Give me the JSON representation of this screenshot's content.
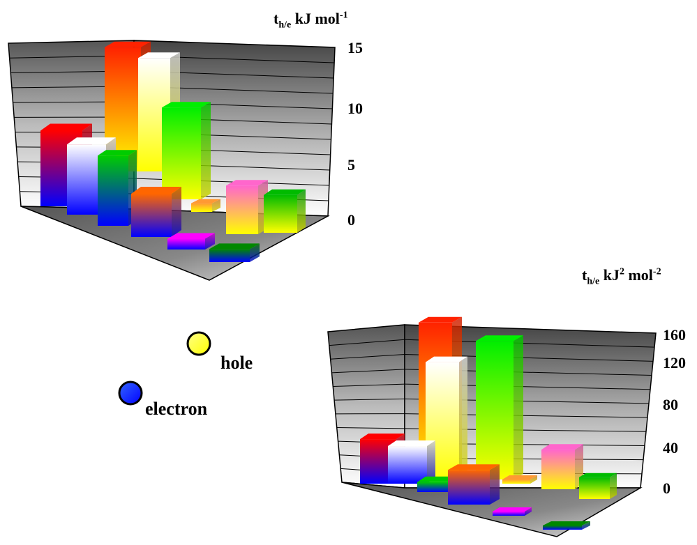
{
  "colors": {
    "hole": "#ffff00",
    "electron": "#0000ff",
    "series_top": [
      "#ff0000",
      "#ffffff",
      "#00cc00",
      "#ff6600",
      "#ff00ff",
      "#008800"
    ]
  },
  "legend": {
    "hole_label": "hole",
    "electron_label": "electron"
  },
  "chart_data": [
    {
      "type": "bar",
      "three_d": true,
      "unit_symbol": "t",
      "unit_subscript": "h/e",
      "unit_text": "kJ mol",
      "unit_superscript": "-1",
      "yticks": [
        "15",
        "10",
        "5",
        "0"
      ],
      "ylim": [
        0,
        15
      ],
      "grid": true,
      "series": [
        {
          "values": [
            11.5,
            10.5,
            8.5,
            4.0
          ],
          "kind": "hole"
        },
        {
          "values": [
            7.0,
            6.5,
            6.5,
            6.5
          ],
          "kind": "electron"
        }
      ],
      "rows": [
        {
          "values": [
            7.0,
            11.5,
            10.5,
            8.5
          ],
          "tops": [
            "#ff0000",
            "#ff2200",
            "#ffffff",
            "#00ee00"
          ]
        },
        {
          "values": [
            6.5,
            6.5,
            4.0,
            0.8,
            4.5
          ],
          "tops": [
            "#ffffff",
            "#00cc00",
            "#ff6600",
            "#ff9933",
            "#ff66cc"
          ]
        },
        {
          "values": [
            1.0,
            1.2,
            3.5
          ],
          "tops": [
            "#ff00ff",
            "#008800",
            "#00bb00"
          ]
        }
      ]
    },
    {
      "type": "bar",
      "three_d": true,
      "unit_symbol": "t",
      "unit_subscript": "h/e",
      "unit_text": "kJ",
      "unit_superscript": "2",
      "unit_text2": " mol",
      "unit_superscript2": "-2",
      "yticks": [
        "160",
        "120",
        "80",
        "40",
        "0"
      ],
      "ylim": [
        0,
        160
      ],
      "grid": true,
      "rows": [
        {
          "values": [
            45,
            160,
            120,
            140
          ],
          "tops": [
            "#ff0000",
            "#ff2200",
            "#ffffff",
            "#00ee00"
          ]
        },
        {
          "values": [
            38,
            10,
            35,
            3,
            40
          ],
          "tops": [
            "#ffffff",
            "#00cc00",
            "#ff6600",
            "#ff9933",
            "#ff66cc"
          ]
        },
        {
          "values": [
            2,
            2,
            22
          ],
          "tops": [
            "#ff00ff",
            "#008800",
            "#00bb00"
          ]
        }
      ]
    }
  ]
}
